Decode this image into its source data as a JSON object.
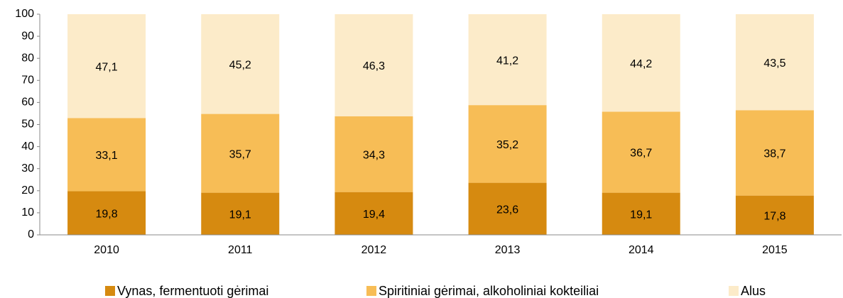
{
  "chart_data": {
    "type": "stacked_bar",
    "categories": [
      "2010",
      "2011",
      "2012",
      "2013",
      "2014",
      "2015"
    ],
    "series": [
      {
        "name": "Vynas, fermentuoti gėrimai",
        "color": "#d68a10",
        "values": [
          19.8,
          19.1,
          19.4,
          23.6,
          19.1,
          17.8
        ],
        "value_labels": [
          "19,8",
          "19,1",
          "19,4",
          "23,6",
          "19,1",
          "17,8"
        ]
      },
      {
        "name": "Spiritiniai gėrimai, alkoholiniai kokteiliai",
        "color": "#f7bd56",
        "values": [
          33.1,
          35.7,
          34.3,
          35.2,
          36.7,
          38.7
        ],
        "value_labels": [
          "33,1",
          "35,7",
          "34,3",
          "35,2",
          "36,7",
          "38,7"
        ]
      },
      {
        "name": "Alus",
        "color": "#fcebc9",
        "values": [
          47.1,
          45.2,
          46.3,
          41.2,
          44.2,
          43.5
        ],
        "value_labels": [
          "47,1",
          "45,2",
          "46,3",
          "41,2",
          "44,2",
          "43,5"
        ]
      }
    ],
    "ylim": [
      0,
      100
    ],
    "yticks": [
      0,
      10,
      20,
      30,
      40,
      50,
      60,
      70,
      80,
      90,
      100
    ],
    "grid": false,
    "legend": "bottom"
  }
}
